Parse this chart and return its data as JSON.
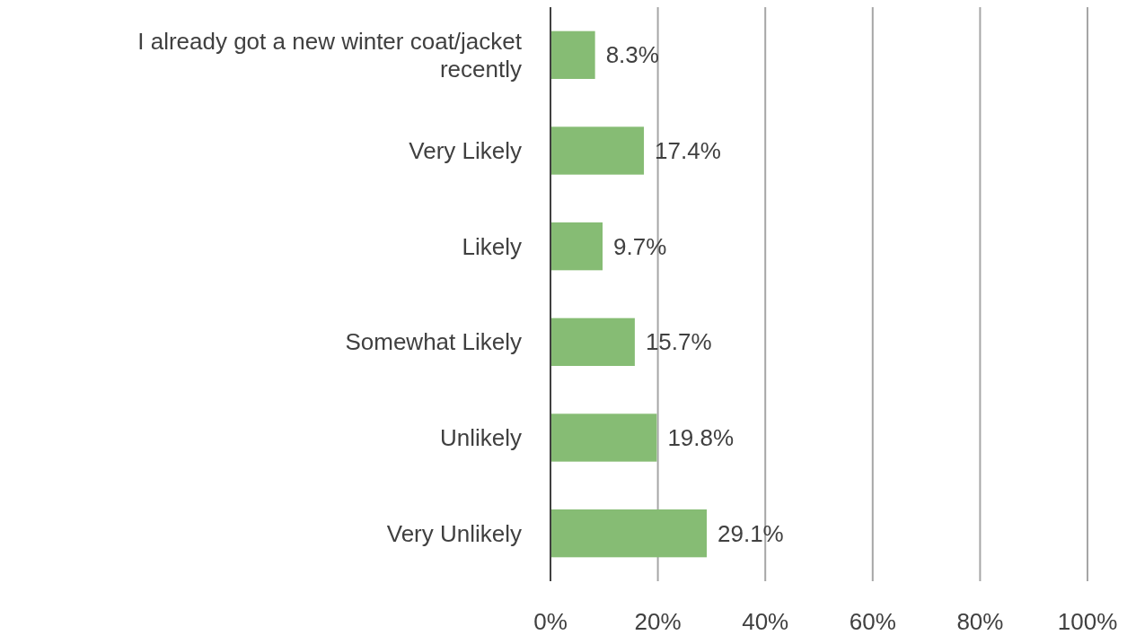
{
  "chart_data": {
    "type": "bar",
    "orientation": "horizontal",
    "categories": [
      "I already got a new winter coat/jacket recently",
      "Very Likely",
      "Likely",
      "Somewhat Likely",
      "Unlikely",
      "Very Unlikely"
    ],
    "values": [
      8.3,
      17.4,
      9.7,
      15.7,
      19.8,
      29.1
    ],
    "value_labels": [
      "8.3%",
      "17.4%",
      "9.7%",
      "15.7%",
      "19.8%",
      "29.1%"
    ],
    "color": "#86bc74",
    "xlim": [
      0,
      100
    ],
    "xticks": [
      {
        "value": 0,
        "label": "0%"
      },
      {
        "value": 20,
        "label": "20%"
      },
      {
        "value": 40,
        "label": "40%"
      },
      {
        "value": 60,
        "label": "60%"
      },
      {
        "value": 80,
        "label": "80%"
      },
      {
        "value": 100,
        "label": "100%"
      }
    ],
    "grid": "x"
  }
}
